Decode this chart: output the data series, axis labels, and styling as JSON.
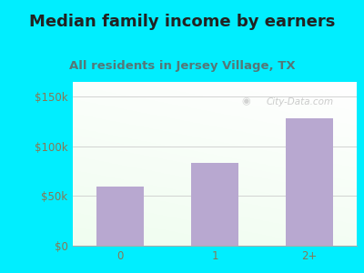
{
  "title": "Median family income by earners",
  "subtitle": "All residents in Jersey Village, TX",
  "categories": [
    "0",
    "1",
    "2+"
  ],
  "values": [
    60000,
    83000,
    128000
  ],
  "bar_color": "#b8a8d0",
  "background_outer": "#00eeff",
  "background_inner_topleft": "#e0f0e0",
  "background_inner_topright": "#f5f5f5",
  "background_inner_bottomleft": "#e8f5e8",
  "background_inner_bottomright": "#ffffff",
  "title_color": "#222222",
  "subtitle_color": "#557777",
  "tick_color": "#887755",
  "yticks": [
    0,
    50000,
    100000,
    150000
  ],
  "ytick_labels": [
    "$0",
    "$50k",
    "$100k",
    "$150k"
  ],
  "ylim": [
    0,
    165000
  ],
  "watermark": "City-Data.com",
  "title_fontsize": 13,
  "subtitle_fontsize": 9.5,
  "tick_fontsize": 8.5
}
